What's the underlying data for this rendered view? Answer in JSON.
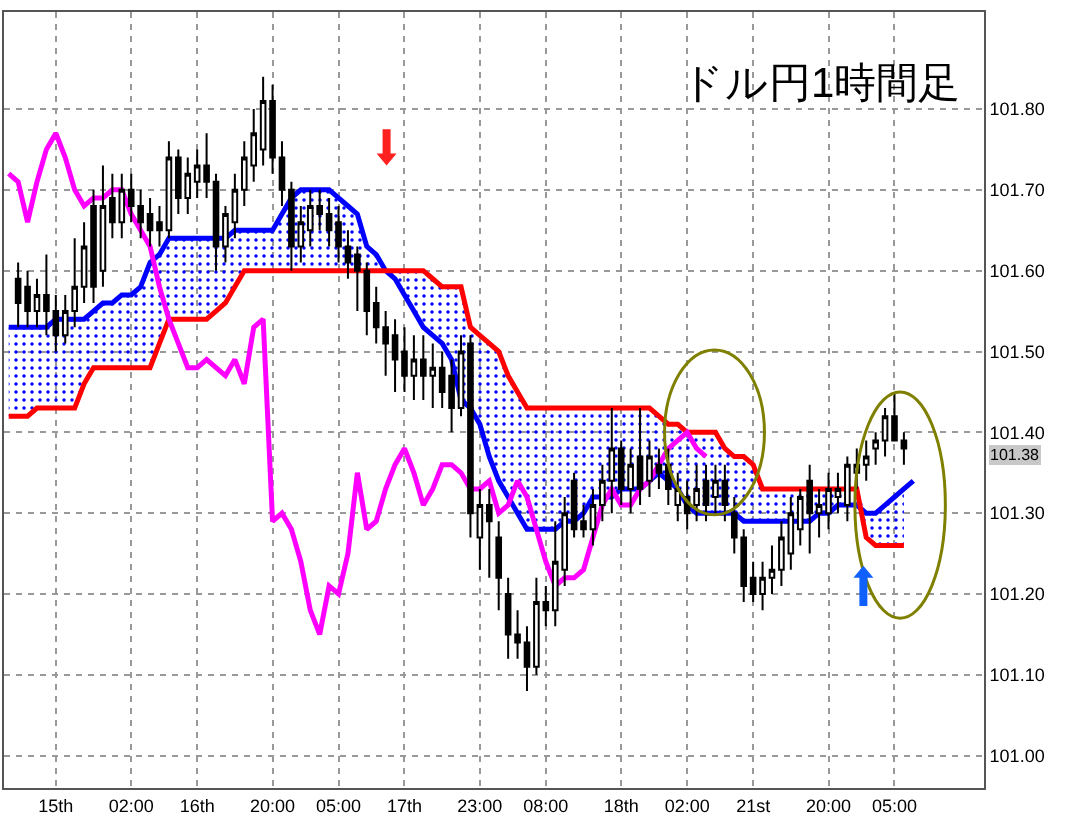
{
  "chart_data": {
    "type": "candlestick",
    "title": "ドル円1時間足",
    "categories": [
      null,
      null,
      null,
      null,
      null,
      "15th",
      null,
      null,
      null,
      null,
      null,
      null,
      null,
      "02:00",
      null,
      null,
      null,
      null,
      null,
      null,
      "16th",
      null,
      null,
      null,
      null,
      null,
      null,
      null,
      "20:00",
      null,
      null,
      null,
      null,
      null,
      null,
      "05:00",
      null,
      null,
      null,
      null,
      null,
      null,
      "17th",
      null,
      null,
      null,
      null,
      null,
      null,
      null,
      "23:00",
      null,
      null,
      null,
      null,
      null,
      null,
      "08:00",
      null,
      null,
      null,
      null,
      null,
      null,
      null,
      "18th",
      null,
      null,
      null,
      null,
      null,
      null,
      "02:00",
      null,
      null,
      null,
      null,
      null,
      null,
      "21st",
      null,
      null,
      null,
      null,
      null,
      null,
      null,
      "20:00",
      null,
      null,
      null,
      null,
      null,
      null,
      "05:00",
      null,
      null,
      null,
      null,
      null,
      null,
      null,
      null,
      null
    ],
    "ohlc": [
      null,
      [
        101.59,
        101.61,
        101.53,
        101.56
      ],
      [
        101.58,
        101.6,
        101.53,
        101.55
      ],
      [
        101.55,
        101.59,
        101.53,
        101.57
      ],
      [
        101.57,
        101.62,
        101.52,
        101.55
      ],
      [
        101.55,
        101.57,
        101.5,
        101.52
      ],
      [
        101.52,
        101.57,
        101.51,
        101.55
      ],
      [
        101.55,
        101.64,
        101.53,
        101.58
      ],
      [
        101.58,
        101.66,
        101.56,
        101.63
      ],
      [
        101.68,
        101.7,
        101.56,
        101.58
      ],
      [
        101.6,
        101.73,
        101.58,
        101.68
      ],
      [
        101.69,
        101.72,
        101.64,
        101.66
      ],
      [
        101.66,
        101.72,
        101.64,
        101.7
      ],
      [
        101.7,
        101.72,
        101.66,
        101.68
      ],
      [
        101.68,
        101.7,
        101.64,
        101.66
      ],
      [
        101.67,
        101.69,
        101.63,
        101.65
      ],
      [
        101.66,
        101.68,
        101.63,
        101.65
      ],
      [
        101.65,
        101.76,
        101.64,
        101.74
      ],
      [
        101.74,
        101.75,
        101.67,
        101.69
      ],
      [
        101.69,
        101.74,
        101.67,
        101.72
      ],
      [
        101.71,
        101.75,
        101.69,
        101.73
      ],
      [
        101.73,
        101.77,
        101.69,
        101.71
      ],
      [
        101.71,
        101.72,
        101.6,
        101.63
      ],
      [
        101.63,
        101.68,
        101.61,
        101.67
      ],
      [
        101.66,
        101.72,
        101.64,
        101.7
      ],
      [
        101.7,
        101.76,
        101.68,
        101.74
      ],
      [
        101.73,
        101.8,
        101.71,
        101.77
      ],
      [
        101.75,
        101.84,
        101.73,
        101.81
      ],
      [
        101.81,
        101.83,
        101.72,
        101.74
      ],
      [
        101.74,
        101.76,
        101.68,
        101.7
      ],
      [
        101.7,
        101.71,
        101.6,
        101.63
      ],
      [
        101.63,
        101.68,
        101.61,
        101.66
      ],
      [
        101.65,
        101.7,
        101.63,
        101.68
      ],
      [
        101.68,
        101.7,
        101.65,
        101.67
      ],
      [
        101.67,
        101.69,
        101.63,
        101.65
      ],
      [
        101.66,
        101.68,
        101.61,
        101.63
      ],
      [
        101.63,
        101.65,
        101.59,
        101.61
      ],
      [
        101.62,
        101.63,
        101.55,
        101.6
      ],
      [
        101.6,
        101.61,
        101.52,
        101.55
      ],
      [
        101.56,
        101.58,
        101.51,
        101.53
      ],
      [
        101.53,
        101.55,
        101.47,
        101.51
      ],
      [
        101.52,
        101.54,
        101.45,
        101.49
      ],
      [
        101.5,
        101.53,
        101.45,
        101.47
      ],
      [
        101.47,
        101.52,
        101.44,
        101.49
      ],
      [
        101.49,
        101.52,
        101.44,
        101.47
      ],
      [
        101.47,
        101.51,
        101.43,
        101.48
      ],
      [
        101.48,
        101.5,
        101.43,
        101.45
      ],
      [
        101.47,
        101.49,
        101.4,
        101.43
      ],
      [
        101.43,
        101.52,
        101.42,
        101.5
      ],
      [
        101.51,
        101.52,
        101.27,
        101.3
      ],
      [
        101.27,
        101.33,
        101.23,
        101.31
      ],
      [
        101.31,
        101.33,
        101.22,
        101.29
      ],
      [
        101.27,
        101.29,
        101.18,
        101.22
      ],
      [
        101.2,
        101.22,
        101.12,
        101.15
      ],
      [
        101.15,
        101.18,
        101.12,
        101.14
      ],
      [
        101.14,
        101.16,
        101.08,
        101.11
      ],
      [
        101.11,
        101.22,
        101.1,
        101.19
      ],
      [
        101.19,
        101.21,
        101.16,
        101.18
      ],
      [
        101.18,
        101.29,
        101.16,
        101.24
      ],
      [
        101.23,
        101.32,
        101.21,
        101.3
      ],
      [
        101.34,
        101.35,
        101.27,
        101.28
      ],
      [
        101.29,
        101.31,
        101.27,
        101.28
      ],
      [
        101.28,
        101.33,
        101.26,
        101.31
      ],
      [
        101.31,
        101.36,
        101.29,
        101.34
      ],
      [
        101.34,
        101.43,
        101.3,
        101.38
      ],
      [
        101.38,
        101.39,
        101.31,
        101.33
      ],
      [
        101.33,
        101.38,
        101.3,
        101.36
      ],
      [
        101.37,
        101.43,
        101.31,
        101.33
      ],
      [
        101.34,
        101.39,
        101.32,
        101.37
      ],
      [
        101.36,
        101.38,
        101.33,
        101.35
      ],
      [
        101.36,
        101.38,
        101.31,
        101.33
      ],
      [
        101.31,
        101.35,
        101.29,
        101.33
      ],
      [
        101.32,
        101.34,
        101.28,
        101.3
      ],
      [
        101.31,
        101.36,
        101.29,
        101.33
      ],
      [
        101.34,
        101.36,
        101.29,
        101.31
      ],
      [
        101.32,
        101.36,
        101.3,
        101.34
      ],
      [
        101.34,
        101.36,
        101.29,
        101.31
      ],
      [
        101.3,
        101.32,
        101.25,
        101.27
      ],
      [
        101.27,
        101.28,
        101.19,
        101.21
      ],
      [
        101.22,
        101.24,
        101.19,
        101.2
      ],
      [
        101.2,
        101.24,
        101.18,
        101.22
      ],
      [
        101.22,
        101.26,
        101.2,
        101.23
      ],
      [
        101.23,
        101.29,
        101.21,
        101.27
      ],
      [
        101.25,
        101.32,
        101.23,
        101.3
      ],
      [
        101.28,
        101.33,
        101.26,
        101.32
      ],
      [
        101.34,
        101.36,
        101.25,
        101.3
      ],
      [
        101.3,
        101.33,
        101.27,
        101.31
      ],
      [
        101.3,
        101.35,
        101.28,
        101.33
      ],
      [
        101.32,
        101.35,
        101.3,
        101.33
      ],
      [
        101.31,
        101.37,
        101.29,
        101.36
      ],
      [
        101.35,
        101.38,
        101.33,
        101.36
      ],
      [
        101.36,
        101.39,
        101.34,
        101.37
      ],
      [
        101.38,
        101.4,
        101.36,
        101.39
      ],
      [
        101.39,
        101.43,
        101.37,
        101.42
      ],
      [
        101.42,
        101.45,
        101.39,
        101.39
      ],
      [
        101.39,
        101.4,
        101.36,
        101.38
      ],
      null,
      null,
      null,
      null,
      null,
      null,
      null,
      null
    ],
    "series": [
      {
        "type": "line",
        "color": "#0000ff",
        "lower": [
          101.42,
          101.42,
          101.42,
          101.43,
          101.43,
          101.43,
          101.43,
          101.43,
          101.46,
          101.48,
          101.48,
          101.48,
          101.48,
          101.48,
          101.48,
          101.48,
          101.51,
          101.54,
          101.54,
          101.54,
          101.54,
          101.54,
          101.55,
          101.56,
          101.58,
          101.6,
          101.6,
          101.6,
          101.6,
          101.6,
          101.6,
          101.6,
          101.6,
          101.6,
          101.6,
          101.6,
          101.6,
          101.6,
          101.6,
          101.6,
          101.6,
          101.59,
          101.57,
          101.55,
          101.53,
          101.52,
          101.51,
          101.49,
          101.44,
          101.43,
          101.41,
          101.37,
          101.34,
          101.32,
          101.3,
          101.28,
          101.28,
          101.28,
          101.28,
          101.29,
          101.29,
          101.3,
          101.32,
          101.32,
          101.32,
          101.33,
          101.33,
          101.33,
          101.34,
          101.35,
          101.34,
          101.33,
          101.31,
          101.3,
          101.3,
          101.3,
          101.3,
          101.3,
          101.29,
          101.29,
          101.29,
          101.29,
          101.29,
          101.29,
          101.29,
          101.29,
          101.3,
          101.3,
          101.31,
          101.31,
          101.31,
          101.27,
          101.26,
          101.26,
          101.26,
          101.26,
          null,
          null,
          null,
          null,
          null,
          null,
          null,
          null
        ],
        "upper": [
          101.53,
          101.53,
          101.53,
          101.53,
          101.53,
          101.54,
          101.54,
          101.54,
          101.54,
          101.55,
          101.56,
          101.56,
          101.57,
          101.57,
          101.58,
          101.61,
          101.62,
          101.64,
          101.64,
          101.64,
          101.64,
          101.64,
          101.64,
          101.64,
          101.65,
          101.65,
          101.65,
          101.65,
          101.65,
          101.67,
          101.69,
          101.7,
          101.7,
          101.7,
          101.7,
          101.69,
          101.68,
          101.67,
          101.63,
          101.62,
          101.6,
          101.6,
          101.6,
          101.6,
          101.6,
          101.59,
          101.58,
          101.58,
          101.58,
          101.53,
          101.52,
          101.51,
          101.5,
          101.47,
          101.45,
          101.43,
          101.43,
          101.43,
          101.43,
          101.43,
          101.43,
          101.43,
          101.43,
          101.43,
          101.43,
          101.43,
          101.43,
          101.43,
          101.43,
          101.42,
          101.41,
          101.41,
          101.4,
          101.4,
          101.4,
          101.4,
          101.38,
          101.37,
          101.37,
          101.36,
          101.33,
          101.33,
          101.33,
          101.33,
          101.33,
          101.33,
          101.33,
          101.33,
          101.33,
          101.33,
          101.33,
          101.3,
          101.3,
          101.31,
          101.32,
          101.33,
          null,
          null,
          null,
          null,
          null,
          null,
          null,
          null
        ],
        "values": [
          101.53,
          101.53,
          101.53,
          101.53,
          101.53,
          101.54,
          101.54,
          101.54,
          101.54,
          101.55,
          101.56,
          101.56,
          101.57,
          101.57,
          101.58,
          101.61,
          101.62,
          101.64,
          101.64,
          101.64,
          101.64,
          101.64,
          101.64,
          101.64,
          101.65,
          101.65,
          101.65,
          101.65,
          101.65,
          101.67,
          101.69,
          101.7,
          101.7,
          101.7,
          101.7,
          101.69,
          101.68,
          101.67,
          101.63,
          101.62,
          101.6,
          101.59,
          101.57,
          101.55,
          101.53,
          101.52,
          101.51,
          101.49,
          101.44,
          101.43,
          101.41,
          101.37,
          101.34,
          101.32,
          101.3,
          101.28,
          101.28,
          101.28,
          101.28,
          101.29,
          101.29,
          101.3,
          101.32,
          101.32,
          101.32,
          101.33,
          101.33,
          101.33,
          101.34,
          101.35,
          101.34,
          101.33,
          101.31,
          101.3,
          101.3,
          101.3,
          101.3,
          101.3,
          101.29,
          101.29,
          101.29,
          101.29,
          101.29,
          101.29,
          101.29,
          101.29,
          101.3,
          101.3,
          101.31,
          101.31,
          101.31,
          101.3,
          101.3,
          101.31,
          101.32,
          101.33,
          101.34,
          null,
          null,
          null,
          null,
          null,
          null,
          null
        ]
      },
      {
        "type": "line",
        "color": "#ff0000",
        "values": [
          101.42,
          101.42,
          101.42,
          101.43,
          101.43,
          101.43,
          101.43,
          101.43,
          101.46,
          101.48,
          101.48,
          101.48,
          101.48,
          101.48,
          101.48,
          101.48,
          101.51,
          101.54,
          101.54,
          101.54,
          101.54,
          101.54,
          101.55,
          101.56,
          101.58,
          101.6,
          101.6,
          101.6,
          101.6,
          101.6,
          101.6,
          101.6,
          101.6,
          101.6,
          101.6,
          101.6,
          101.6,
          101.6,
          101.6,
          101.6,
          101.6,
          101.6,
          101.6,
          101.6,
          101.6,
          101.59,
          101.58,
          101.58,
          101.58,
          101.53,
          101.52,
          101.51,
          101.5,
          101.47,
          101.45,
          101.43,
          101.43,
          101.43,
          101.43,
          101.43,
          101.43,
          101.43,
          101.43,
          101.43,
          101.43,
          101.43,
          101.43,
          101.43,
          101.43,
          101.42,
          101.41,
          101.41,
          101.4,
          101.4,
          101.4,
          101.4,
          101.38,
          101.37,
          101.37,
          101.36,
          101.33,
          101.33,
          101.33,
          101.33,
          101.33,
          101.33,
          101.33,
          101.33,
          101.33,
          101.33,
          101.33,
          101.27,
          101.26,
          101.26,
          101.26,
          101.26,
          null,
          null,
          null,
          null,
          null,
          null,
          null,
          null
        ]
      },
      {
        "type": "line",
        "color": "#ff00ff",
        "values": [
          101.72,
          101.71,
          101.66,
          101.71,
          101.75,
          101.77,
          101.74,
          101.7,
          101.68,
          101.69,
          101.69,
          101.7,
          101.7,
          101.67,
          101.65,
          101.63,
          101.58,
          101.54,
          101.51,
          101.48,
          101.48,
          101.49,
          101.48,
          101.47,
          101.49,
          101.46,
          101.53,
          101.54,
          101.29,
          101.3,
          101.28,
          101.24,
          101.18,
          101.15,
          101.21,
          101.2,
          101.25,
          101.35,
          101.28,
          101.29,
          101.33,
          101.36,
          101.38,
          101.35,
          101.31,
          101.33,
          101.36,
          101.36,
          101.35,
          101.33,
          101.33,
          101.34,
          101.3,
          101.31,
          101.34,
          101.32,
          101.28,
          101.24,
          101.21,
          101.22,
          101.22,
          101.23,
          101.27,
          101.31,
          101.33,
          101.31,
          101.31,
          101.33,
          101.34,
          101.36,
          101.38,
          101.39,
          101.4,
          101.38,
          101.37,
          null,
          null,
          null,
          null,
          null,
          null,
          null,
          null,
          null,
          null,
          null,
          null,
          null,
          null,
          null,
          null,
          null,
          null,
          null,
          null,
          null,
          null,
          null,
          null,
          null,
          null,
          null,
          null,
          null
        ]
      }
    ],
    "ylim": [
      100.96,
      101.92
    ],
    "yticks": [
      {
        "value": 101.0,
        "label": "101.00"
      },
      {
        "value": 101.1,
        "label": "101.10"
      },
      {
        "value": 101.2,
        "label": "101.20"
      },
      {
        "value": 101.3,
        "label": "101.30"
      },
      {
        "value": 101.4,
        "label": "101.40"
      },
      {
        "value": 101.5,
        "label": "101.50"
      },
      {
        "value": 101.6,
        "label": "101.60"
      },
      {
        "value": 101.7,
        "label": "101.70"
      },
      {
        "value": 101.8,
        "label": "101.80"
      }
    ],
    "annotations": [
      "101.38"
    ],
    "grid": true
  }
}
